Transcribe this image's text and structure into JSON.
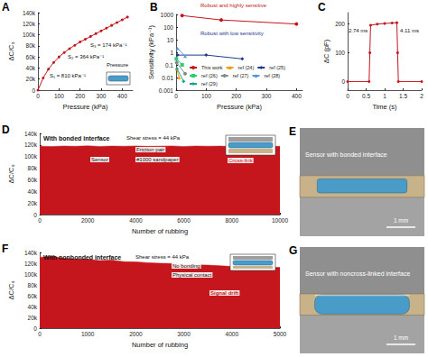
{
  "chart_data": [
    {
      "type": "line",
      "title": "A",
      "x_label": "Pressure (kPa)",
      "y_label": "ΔC/C₀",
      "x": [
        0,
        25,
        50,
        75,
        100,
        125,
        150,
        175,
        200,
        225,
        250,
        275,
        300,
        325,
        350,
        375,
        400,
        425
      ],
      "values": [
        0,
        22000,
        38000,
        50000,
        60000,
        68000,
        75000,
        81000,
        87000,
        92000,
        97000,
        102000,
        107000,
        112000,
        117000,
        122000,
        127000,
        132000
      ],
      "color": "#c4161c",
      "marker": "circle",
      "xlim": [
        0,
        450
      ],
      "xticks": [
        0,
        100,
        200,
        300,
        400
      ],
      "ylim": [
        0,
        140000
      ],
      "yticks": [
        0,
        {
          "value": 20000,
          "label": "20k"
        },
        {
          "value": 40000,
          "label": "40k"
        },
        {
          "value": 60000,
          "label": "60k"
        },
        {
          "value": 80000,
          "label": "80k"
        },
        {
          "value": 100000,
          "label": "100k"
        },
        {
          "value": 120000,
          "label": "120k"
        },
        {
          "value": 140000,
          "label": "140k"
        }
      ],
      "grid": false,
      "annotations": [
        "S₁ = 810 kPa⁻¹",
        "S₂ = 364 kPa⁻¹",
        "S₃ = 174 kPa⁻¹",
        "Pressure"
      ]
    },
    {
      "type": "line",
      "title": "B",
      "x_label": "Pressure (kPa)",
      "y_label": "Sensitivity (kPa⁻¹)",
      "log": "y",
      "legend": "lower right",
      "grid": false,
      "xlim": [
        0,
        420
      ],
      "xticks": [
        0,
        100,
        200,
        300,
        400
      ],
      "ylim": [
        0.001,
        1000
      ],
      "yticks": [
        0.001,
        0.01,
        0.1,
        1,
        10,
        100,
        1000
      ],
      "series": [
        {
          "name": "This work",
          "color": "#c4161c",
          "marker": "circle",
          "x": [
            20,
            150,
            400
          ],
          "values": [
            810,
            364,
            174
          ]
        },
        {
          "name": "ref (24)",
          "color": "#f39c12",
          "marker": "triangle",
          "x": [
            2,
            10
          ],
          "values": [
            0.05,
            0.01
          ]
        },
        {
          "name": "ref (25)",
          "color": "#1f3a93",
          "marker": "diamond",
          "x": [
            5,
            100,
            220
          ],
          "values": [
            0.6,
            0.6,
            0.3
          ]
        },
        {
          "name": "ref (26)",
          "color": "#2ecc71",
          "marker": "rect",
          "x": [
            1,
            20
          ],
          "values": [
            0.3,
            0.1
          ]
        },
        {
          "name": "ref (27)",
          "color": "#7f8c8d",
          "marker": "circle",
          "x": [
            2,
            30
          ],
          "values": [
            0.15,
            0.02
          ]
        },
        {
          "name": "ref (28)",
          "color": "#5b9bd5",
          "marker": "triangle",
          "x": [
            5,
            30
          ],
          "values": [
            2,
            0.5
          ]
        },
        {
          "name": "ref (29)",
          "color": "#17a589",
          "marker": "diamond",
          "x": [
            3,
            25
          ],
          "values": [
            0.05,
            0.005
          ]
        }
      ],
      "annotations": [
        "Robust and highly sensitive",
        "Robust with low sensitivity"
      ]
    },
    {
      "type": "line",
      "title": "C",
      "x_label": "Time (s)",
      "y_label": "ΔC (pF)",
      "x": [
        0,
        0.58,
        0.6,
        0.62,
        0.8,
        1.0,
        1.2,
        1.33,
        1.35,
        1.37,
        2
      ],
      "values": [
        0,
        0,
        100,
        196,
        200,
        202,
        204,
        205,
        100,
        0,
        0
      ],
      "color": "#c4161c",
      "marker": "circle",
      "grid": false,
      "xlim": [
        0,
        2
      ],
      "xticks": [
        0,
        0.5,
        1,
        1.5,
        2
      ],
      "ylim": [
        -30,
        240
      ],
      "yticks": [
        0,
        100,
        200
      ],
      "annotations": [
        "2.74 ms",
        "4.11 ms"
      ]
    },
    {
      "type": "area",
      "title": "D",
      "x_label": "Number of rubbing",
      "y_label": "ΔC/C₀",
      "x": [
        0,
        500,
        1000,
        1500,
        2000,
        2500,
        3000,
        3500,
        4000,
        4500,
        5000,
        5500,
        6000,
        6500,
        7000,
        7500,
        8000,
        8500,
        9000,
        9500,
        10000
      ],
      "values": [
        118000,
        117500,
        118200,
        117800,
        118500,
        117600,
        118100,
        117900,
        118300,
        117700,
        118000,
        118400,
        117500,
        118200,
        117900,
        118100,
        117600,
        118300,
        117800,
        118000,
        117700
      ],
      "color": "#c4161c",
      "grid": false,
      "xlim": [
        0,
        10000
      ],
      "xticks": [
        0,
        2000,
        4000,
        6000,
        8000,
        10000
      ],
      "ylim": [
        0,
        140000
      ],
      "yticks": [
        0,
        {
          "value": 20000,
          "label": "20k"
        },
        {
          "value": 40000,
          "label": "40k"
        },
        {
          "value": 60000,
          "label": "60k"
        },
        {
          "value": 80000,
          "label": "80k"
        },
        {
          "value": 100000,
          "label": "100k"
        },
        {
          "value": 120000,
          "label": "120k"
        },
        {
          "value": 140000,
          "label": "140k"
        }
      ],
      "annotations": [
        "With bonded interface",
        "Shear stress = 44 kPa",
        "Friction pair",
        "Sensor",
        "#1000 sandpaper",
        "Cross-link"
      ]
    },
    {
      "type": "image",
      "title": "E",
      "annotations": [
        "Sensor with bonded interface",
        "1 mm"
      ]
    },
    {
      "type": "area",
      "title": "F",
      "x_label": "Number of rubbing",
      "y_label": "ΔC/C₀",
      "x": [
        0,
        250,
        500,
        750,
        1000,
        1250,
        1500,
        1750,
        2000,
        2250,
        2500,
        2750,
        3000,
        3250,
        3500,
        3750,
        4000,
        4250,
        4500,
        4750,
        5000
      ],
      "values": [
        131000,
        133000,
        129000,
        128000,
        127500,
        125000,
        126000,
        123000,
        122500,
        121000,
        120000,
        119500,
        118000,
        117000,
        116500,
        115500,
        114000,
        113500,
        114500,
        112000,
        112500
      ],
      "color": "#c4161c",
      "grid": false,
      "xlim": [
        0,
        5000
      ],
      "xticks": [
        0,
        1000,
        2000,
        3000,
        4000,
        5000
      ],
      "ylim": [
        0,
        140000
      ],
      "yticks": [
        0,
        {
          "value": 20000,
          "label": "20k"
        },
        {
          "value": 40000,
          "label": "40k"
        },
        {
          "value": 60000,
          "label": "60k"
        },
        {
          "value": 80000,
          "label": "80k"
        },
        {
          "value": 100000,
          "label": "100k"
        },
        {
          "value": 120000,
          "label": "120k"
        },
        {
          "value": 140000,
          "label": "140k"
        }
      ],
      "annotations": [
        "With nonbonded interface",
        "Shear stress = 44 kPa",
        "No bonding",
        "Physical contact",
        "Signal drift"
      ]
    },
    {
      "type": "image",
      "title": "G",
      "annotations": [
        "Sensor with noncross-linked interface",
        "1 mm"
      ]
    }
  ]
}
